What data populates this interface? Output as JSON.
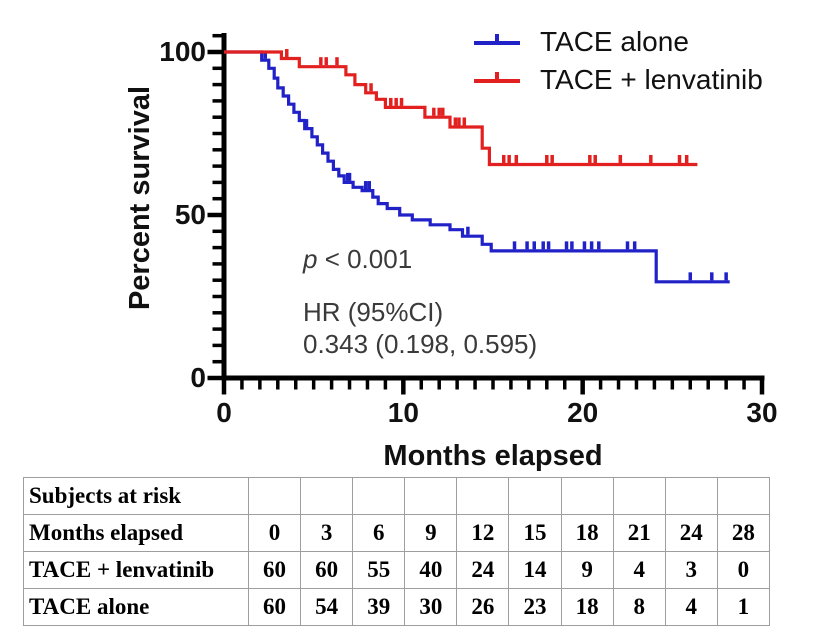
{
  "chart_data": {
    "type": "line",
    "subtype": "kaplan-meier-step",
    "title": "",
    "xlabel": "Months elapsed",
    "ylabel": "Percent survival",
    "xlim": [
      0,
      30
    ],
    "ylim": [
      0,
      100
    ],
    "xticks": [
      0,
      10,
      20,
      30
    ],
    "x_minor_step": 1,
    "yticks": [
      0,
      50,
      100
    ],
    "y_minor_step": 5,
    "grid": false,
    "legend_position": "top-right",
    "annotations": {
      "p_italic": "p",
      "p_rest": " < 0.001",
      "hr_label": "HR (95%CI)",
      "hr_value": "0.343 (0.198, 0.595)"
    },
    "series": [
      {
        "name": "TACE alone",
        "color": "#2121c8",
        "start": [
          0,
          100
        ],
        "steps": [
          [
            2.1,
            97.5
          ],
          [
            2.5,
            95
          ],
          [
            2.8,
            92
          ],
          [
            3.0,
            89
          ],
          [
            3.3,
            86.5
          ],
          [
            3.6,
            84
          ],
          [
            3.9,
            81.5
          ],
          [
            4.2,
            79
          ],
          [
            4.5,
            76.5
          ],
          [
            4.9,
            74
          ],
          [
            5.2,
            71.5
          ],
          [
            5.5,
            69
          ],
          [
            5.8,
            66.5
          ],
          [
            6.1,
            64
          ],
          [
            6.4,
            62
          ],
          [
            6.7,
            60
          ],
          [
            7.2,
            58.5
          ],
          [
            7.7,
            57.5
          ],
          [
            8.3,
            55.5
          ],
          [
            8.6,
            53.5
          ],
          [
            9.1,
            52
          ],
          [
            9.8,
            50
          ],
          [
            10.5,
            48.5
          ],
          [
            11.5,
            47
          ],
          [
            12.6,
            45.5
          ],
          [
            13.3,
            43.5
          ],
          [
            14.4,
            41
          ],
          [
            14.9,
            39
          ],
          [
            24.1,
            29.5
          ]
        ],
        "end_month": 28.2,
        "censors": [
          [
            2.3,
            97.5
          ],
          [
            4.6,
            76.5
          ],
          [
            6.9,
            60
          ],
          [
            7.0,
            60
          ],
          [
            7.9,
            57.5
          ],
          [
            8.1,
            57.5
          ],
          [
            13.6,
            43.5
          ],
          [
            16.2,
            39
          ],
          [
            16.9,
            39
          ],
          [
            17.3,
            39
          ],
          [
            17.8,
            39
          ],
          [
            18.1,
            39
          ],
          [
            19.1,
            39
          ],
          [
            19.4,
            39
          ],
          [
            20.1,
            39
          ],
          [
            20.5,
            39
          ],
          [
            20.9,
            39
          ],
          [
            22.5,
            39
          ],
          [
            22.9,
            39
          ],
          [
            26.0,
            29.5
          ],
          [
            27.2,
            29.5
          ],
          [
            28.0,
            29.5
          ]
        ]
      },
      {
        "name": "TACE + lenvatinib",
        "color": "#e22020",
        "start": [
          0,
          100
        ],
        "steps": [
          [
            3.2,
            98
          ],
          [
            4.2,
            95.5
          ],
          [
            6.8,
            93
          ],
          [
            7.3,
            90
          ],
          [
            7.9,
            87.5
          ],
          [
            8.5,
            85.5
          ],
          [
            9.0,
            83
          ],
          [
            11.2,
            80
          ],
          [
            12.6,
            77
          ],
          [
            14.4,
            70.5
          ],
          [
            14.8,
            65.5
          ]
        ],
        "end_month": 26.4,
        "censors": [
          [
            3.5,
            98
          ],
          [
            5.4,
            95.5
          ],
          [
            5.7,
            95.5
          ],
          [
            6.3,
            95.5
          ],
          [
            8.2,
            87.5
          ],
          [
            9.3,
            83
          ],
          [
            9.6,
            83
          ],
          [
            9.9,
            83
          ],
          [
            11.7,
            80
          ],
          [
            12.0,
            80
          ],
          [
            12.2,
            80
          ],
          [
            12.9,
            77
          ],
          [
            13.1,
            77
          ],
          [
            13.4,
            77
          ],
          [
            15.6,
            65.5
          ],
          [
            15.9,
            65.5
          ],
          [
            16.3,
            65.5
          ],
          [
            18.0,
            65.5
          ],
          [
            18.3,
            65.5
          ],
          [
            20.4,
            65.5
          ],
          [
            20.7,
            65.5
          ],
          [
            22.1,
            65.5
          ],
          [
            23.8,
            65.5
          ],
          [
            25.4,
            65.5
          ],
          [
            25.8,
            65.5
          ]
        ]
      }
    ]
  },
  "risk_table": {
    "title": "Subjects at risk",
    "x_row_label": "Months elapsed",
    "months": [
      "0",
      "3",
      "6",
      "9",
      "12",
      "15",
      "18",
      "21",
      "24",
      "28"
    ],
    "rows": [
      {
        "label": "TACE + lenvatinib",
        "values": [
          "60",
          "60",
          "55",
          "40",
          "24",
          "14",
          "9",
          "4",
          "3",
          "0"
        ]
      },
      {
        "label": "TACE alone",
        "values": [
          "60",
          "54",
          "39",
          "30",
          "26",
          "23",
          "18",
          "8",
          "4",
          "1"
        ]
      }
    ]
  },
  "colors": {
    "axis": "#000000",
    "tick_text": "#111111",
    "annotation": "#3a3a3a",
    "table_border": "#9e9e9e",
    "background": "#ffffff"
  }
}
